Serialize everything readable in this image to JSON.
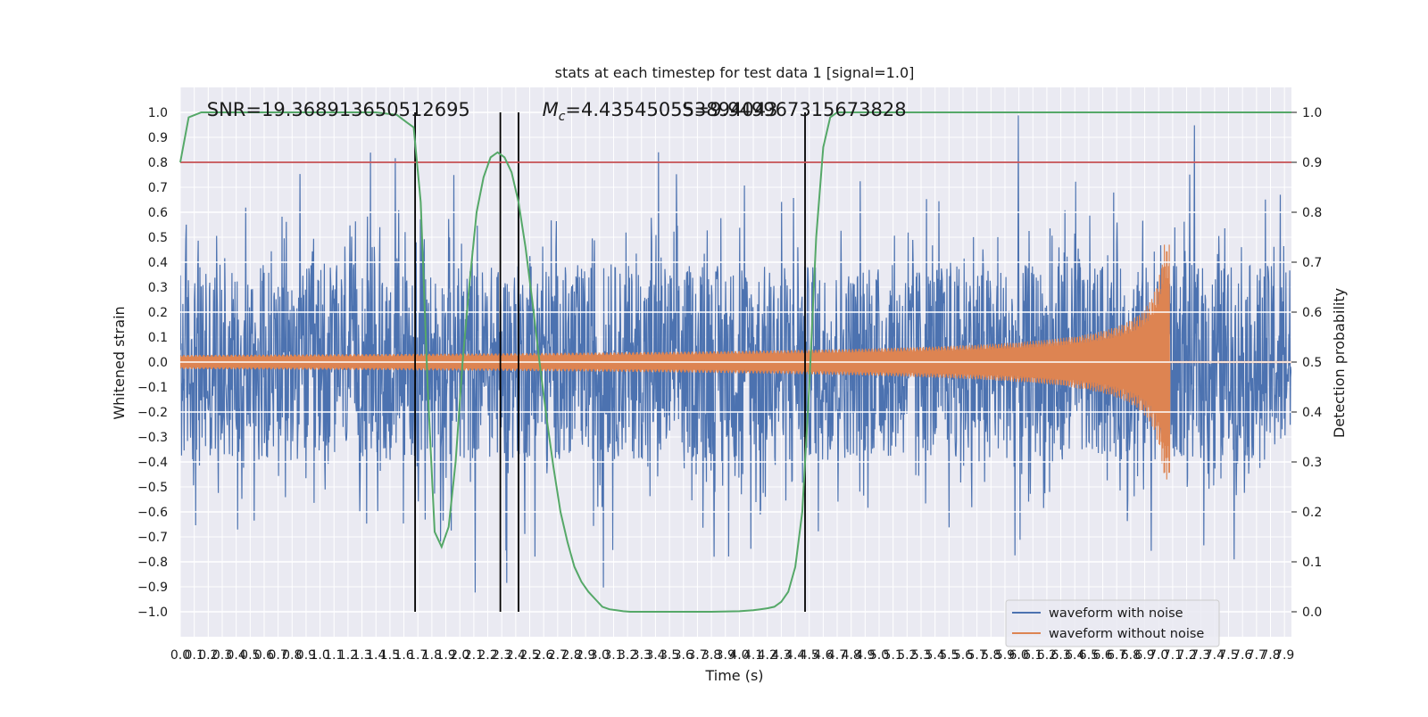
{
  "chart_data": {
    "type": "line",
    "title": "stats at each timestep for test data 1 [signal=1.0]",
    "xlabel": "Time (s)",
    "ylabel_left": "Whitened strain",
    "ylabel_right": "Detection probability",
    "xlim": [
      0.0,
      7.95
    ],
    "ylim_left": [
      -1.1,
      1.1
    ],
    "ylim_right": [
      -0.05,
      1.05
    ],
    "x_ticks": [
      "0.0",
      "0.1",
      "0.2",
      "0.3",
      "0.4",
      "0.5",
      "0.6",
      "0.7",
      "0.8",
      "0.9",
      "1.0",
      "1.1",
      "1.2",
      "1.3",
      "1.4",
      "1.5",
      "1.6",
      "1.7",
      "1.8",
      "1.9",
      "2.0",
      "2.1",
      "2.2",
      "2.3",
      "2.4",
      "2.5",
      "2.6",
      "2.7",
      "2.8",
      "2.9",
      "3.0",
      "3.1",
      "3.2",
      "3.3",
      "3.4",
      "3.5",
      "3.6",
      "3.7",
      "3.8",
      "3.9",
      "4.0",
      "4.1",
      "4.2",
      "4.3",
      "4.4",
      "4.5",
      "4.6",
      "4.7",
      "4.8",
      "4.9",
      "5.0",
      "5.1",
      "5.2",
      "5.3",
      "5.4",
      "5.5",
      "5.6",
      "5.7",
      "5.8",
      "5.9",
      "6.0",
      "6.1",
      "6.2",
      "6.3",
      "6.4",
      "6.5",
      "6.6",
      "6.7",
      "6.8",
      "6.9",
      "7.0",
      "7.1",
      "7.2",
      "7.3",
      "7.4",
      "7.5",
      "7.6",
      "7.7",
      "7.8",
      "7.9"
    ],
    "y_ticks_left": [
      "−1.0",
      "−0.9",
      "−0.8",
      "−0.7",
      "−0.6",
      "−0.5",
      "−0.4",
      "−0.3",
      "−0.2",
      "−0.1",
      "0.0",
      "0.1",
      "0.2",
      "0.3",
      "0.4",
      "0.5",
      "0.6",
      "0.7",
      "0.8",
      "0.9",
      "1.0"
    ],
    "y_ticks_right": [
      "0.0",
      "0.1",
      "0.2",
      "0.3",
      "0.4",
      "0.5",
      "0.6",
      "0.7",
      "0.8",
      "0.9",
      "1.0"
    ],
    "grid": true,
    "legend_placement": "lower-right",
    "series": [
      {
        "name": "waveform with noise",
        "color": "#4c72b0",
        "description": "noise",
        "band_left": 0.27,
        "band_right": 0.27,
        "spike_scale": 0.9
      },
      {
        "name": "waveform without noise",
        "color": "#dd8452",
        "description": "chirp",
        "amp_start": 0.03,
        "amp_peak": 0.47,
        "merge_time": 7.08,
        "amp_after": 0.004
      },
      {
        "name": "",
        "color": "#55a868",
        "axis": "right",
        "x": [
          0.0,
          0.06,
          0.15,
          0.25,
          0.4,
          0.6,
          0.8,
          1.0,
          1.2,
          1.4,
          1.55,
          1.62,
          1.67,
          1.72,
          1.77,
          1.82,
          1.87,
          1.92,
          1.97,
          2.02,
          2.07,
          2.12,
          2.17,
          2.22,
          2.27,
          2.32,
          2.37,
          2.42,
          2.47,
          2.52,
          2.57,
          2.62,
          2.67,
          2.72,
          2.77,
          2.82,
          2.87,
          2.92,
          2.97,
          3.02,
          3.07,
          3.12,
          3.17,
          3.22,
          3.27,
          3.32,
          3.37,
          3.42,
          3.5,
          3.6,
          3.8,
          4.0,
          4.1,
          4.15,
          4.2,
          4.25,
          4.3,
          4.35,
          4.4,
          4.45,
          4.5,
          4.55,
          4.6,
          4.65,
          4.7,
          4.8,
          5.0,
          5.5,
          6.0,
          6.5,
          7.0,
          7.5,
          7.95
        ],
        "y": [
          0.9,
          0.99,
          1.0,
          1.0,
          1.0,
          1.0,
          1.0,
          1.0,
          1.0,
          1.0,
          0.995,
          0.98,
          0.97,
          0.82,
          0.45,
          0.16,
          0.13,
          0.17,
          0.3,
          0.5,
          0.66,
          0.8,
          0.87,
          0.91,
          0.92,
          0.91,
          0.88,
          0.82,
          0.73,
          0.62,
          0.5,
          0.39,
          0.29,
          0.2,
          0.14,
          0.09,
          0.06,
          0.04,
          0.025,
          0.01,
          0.005,
          0.003,
          0.001,
          0.0,
          0.0,
          0.0,
          0.0,
          0.0,
          0.0,
          0.0,
          0.0,
          0.001,
          0.003,
          0.005,
          0.007,
          0.01,
          0.02,
          0.04,
          0.09,
          0.2,
          0.45,
          0.75,
          0.93,
          0.99,
          1.0,
          1.0,
          1.0,
          1.0,
          1.0,
          1.0,
          1.0,
          1.0,
          1.0
        ]
      },
      {
        "name": "",
        "color": "#c44e52",
        "axis": "right",
        "type": "hline",
        "y": 0.9
      }
    ],
    "vlines": [
      1.68,
      2.29,
      2.42,
      4.47
    ],
    "vline_color": "#000000",
    "annotations": [
      {
        "text": "SNR=19.368913650512695",
        "x": 0.19,
        "y": 1.01
      },
      {
        "text_italic": "M",
        "text_sub": "c",
        "text": "=4.435450553894043",
        "x": 2.59,
        "y": 1.01
      },
      {
        "text": "S=9.949967315673828",
        "x": 3.59,
        "y": 1.01
      }
    ]
  }
}
